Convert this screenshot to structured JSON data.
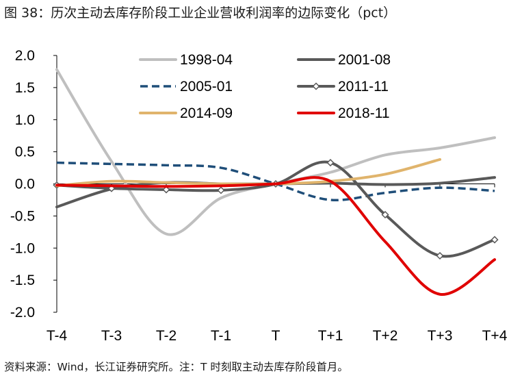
{
  "title": "图 38：历次主动去库存阶段工业企业营收利润率的边际变化（pct）",
  "source": "资料来源：Wind，长江证券研究所。注：T 时刻取主动去库存阶段首月。",
  "chart_data": {
    "type": "line",
    "ylabel": "pct",
    "ylim": [
      -2.0,
      2.0
    ],
    "yticks": [
      2.0,
      1.5,
      1.0,
      0.5,
      0.0,
      -0.5,
      -1.0,
      -1.5,
      -2.0
    ],
    "ytick_labels": [
      "2.0",
      "1.5",
      "1.0",
      "0.5",
      "0.0",
      "-0.5",
      "-1.0",
      "-1.5",
      "-2.0"
    ],
    "categories": [
      "T-4",
      "T-3",
      "T-2",
      "T-1",
      "T",
      "T+1",
      "T+2",
      "T+3",
      "T+4"
    ],
    "legend_position": "top",
    "series": [
      {
        "name": "1998-04",
        "color": "#bfbfbf",
        "dash": "solid",
        "marker": "none",
        "values": [
          1.78,
          0.35,
          -0.78,
          -0.22,
          0.0,
          0.18,
          0.45,
          0.56,
          0.72
        ]
      },
      {
        "name": "2001-08",
        "color": "#595959",
        "dash": "solid",
        "marker": "none",
        "values": [
          -0.36,
          -0.08,
          0.02,
          0.0,
          0.0,
          0.01,
          -0.01,
          0.01,
          0.1
        ]
      },
      {
        "name": "2005-01",
        "color": "#1f4e79",
        "dash": "dashed",
        "marker": "none",
        "values": [
          0.33,
          0.31,
          0.29,
          0.25,
          0.0,
          -0.25,
          -0.14,
          -0.06,
          -0.11
        ]
      },
      {
        "name": "2011-11",
        "color": "#595959",
        "dash": "solid",
        "marker": "diamond",
        "values": [
          -0.02,
          -0.07,
          -0.09,
          -0.1,
          0.0,
          0.33,
          -0.48,
          -1.12,
          -0.87
        ]
      },
      {
        "name": "2014-09",
        "color": "#e0b46c",
        "dash": "solid",
        "marker": "none",
        "values": [
          -0.03,
          0.04,
          0.02,
          0.0,
          0.0,
          0.04,
          0.15,
          0.38,
          null
        ]
      },
      {
        "name": "2018-11",
        "color": "#e00000",
        "dash": "solid",
        "marker": "none",
        "values": [
          -0.02,
          -0.03,
          -0.04,
          -0.03,
          0.0,
          0.04,
          -0.9,
          -1.72,
          -1.18
        ]
      }
    ]
  }
}
